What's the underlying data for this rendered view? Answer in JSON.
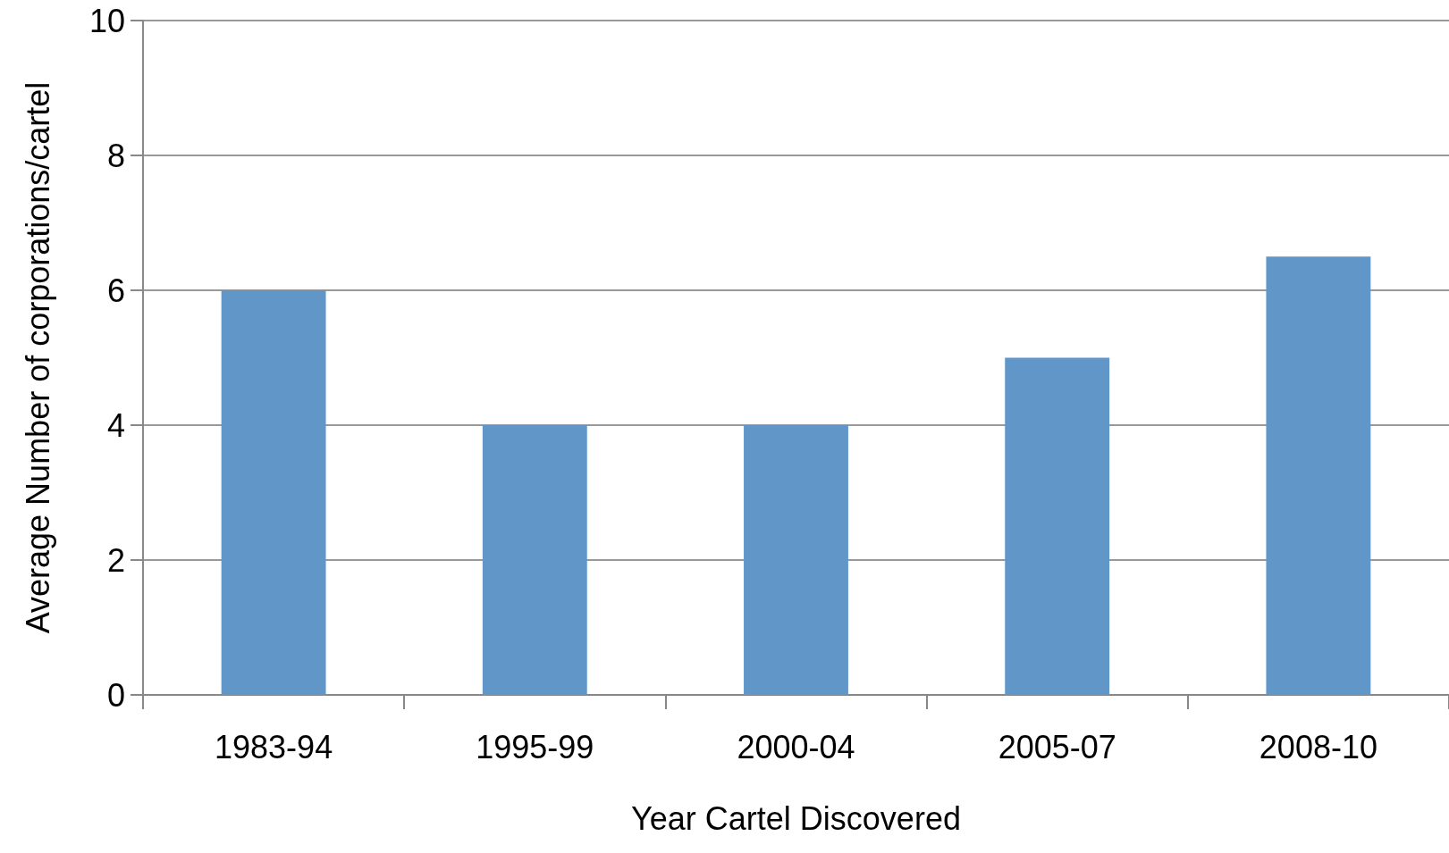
{
  "chart_data": {
    "type": "bar",
    "xlabel": "Year Cartel Discovered",
    "ylabel": "Average Number of corporations/cartel",
    "categories": [
      "1983-94",
      "1995-99",
      "2000-04",
      "2005-07",
      "2008-10"
    ],
    "values": [
      6,
      4,
      4,
      5,
      6.5
    ],
    "color": "#6196c9",
    "ylim": [
      0,
      10
    ],
    "yticks": [
      0,
      2,
      4,
      6,
      8,
      10
    ],
    "grid": "y"
  }
}
